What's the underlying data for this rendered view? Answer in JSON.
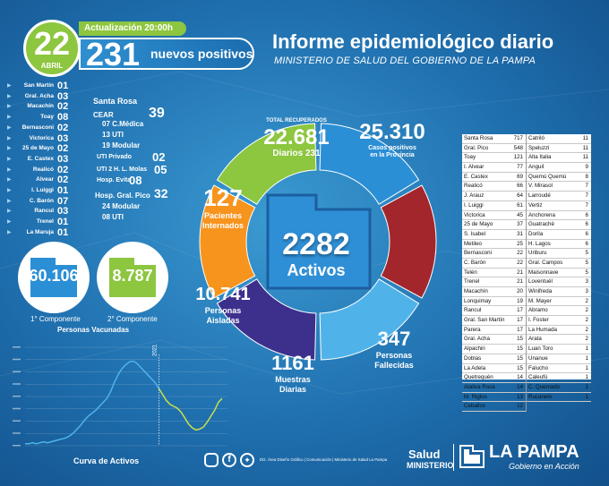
{
  "header": {
    "day": "22",
    "month": "ABRIL",
    "update_label": "Actualización 20:00h",
    "new_positives_value": "231",
    "new_positives_label": "nuevos positivos",
    "title": "Informe epidemiológico diario",
    "subtitle": "MINISTERIO DE SALUD DEL GOBIERNO DE LA PAMPA"
  },
  "localities": [
    {
      "name": "San Martín",
      "value": "01"
    },
    {
      "name": "Gral. Acha",
      "value": "03"
    },
    {
      "name": "Macachín",
      "value": "02"
    },
    {
      "name": "Toay",
      "value": "08"
    },
    {
      "name": "Bernasconi",
      "value": "02"
    },
    {
      "name": "Victorica",
      "value": "03"
    },
    {
      "name": "25 de Mayo",
      "value": "02"
    },
    {
      "name": "E. Castex",
      "value": "03"
    },
    {
      "name": "Realicó",
      "value": "02"
    },
    {
      "name": "Alvear",
      "value": "02"
    },
    {
      "name": "I. Luiggi",
      "value": "01"
    },
    {
      "name": "C. Barón",
      "value": "07"
    },
    {
      "name": "Rancul",
      "value": "03"
    },
    {
      "name": "Trenel",
      "value": "01"
    },
    {
      "name": "La Maruja",
      "value": "01"
    }
  ],
  "hospitals": {
    "santa_rosa": "Santa Rosa",
    "cear": "CEAR",
    "cmedica": "07 C.Médica",
    "cmedica_total": "39",
    "uti13": "13 UTI",
    "modular19": "19 Modular",
    "uti_privado": "UTI Privado",
    "uti_privado_val": "02",
    "molas": "UTI 2 H. L. Molas",
    "molas_val": "05",
    "evita": "Hosp. Evita",
    "evita_val": "08",
    "pico": "Hosp. Gral. Pico",
    "pico_val": "32",
    "modular24": "24 Modular",
    "uti08": "08 UTI"
  },
  "vaccines": {
    "first_value": "60.106",
    "first_label": "1° Componente",
    "second_value": "8.787",
    "second_label": "2° Componente",
    "caption": "Personas Vacunadas"
  },
  "donut": {
    "recovered_label": "TOTAL RECUPERADOS",
    "recovered_value": "22.681",
    "recovered_daily": "Diarios 231",
    "positives_value": "25.310",
    "positives_label1": "Casos positivos",
    "positives_label2": "en la Provincia",
    "hospitalized_value": "127",
    "hospitalized_label1": "Pacientes",
    "hospitalized_label2": "Internados",
    "isolated_value": "10.741",
    "isolated_label1": "Personas",
    "isolated_label2": "Aisladas",
    "samples_value": "1161",
    "samples_label1": "Muestras",
    "samples_label2": "Diarias",
    "deceased_value": "347",
    "deceased_label1": "Personas",
    "deceased_label2": "Fallecidas",
    "active_value": "2282",
    "active_label": "Activos",
    "colors": {
      "green": "#8dc63f",
      "blue": "#2b8fd6",
      "orange": "#f7941d",
      "purple": "#3d2f8c",
      "light": "#4fb3ea",
      "red": "#a3262c"
    }
  },
  "table": {
    "left": [
      {
        "n": "Santa Rosa",
        "v": "717"
      },
      {
        "n": "Gral. Pico",
        "v": "548"
      },
      {
        "n": "Toay",
        "v": "121"
      },
      {
        "n": "I. Alvear",
        "v": "77"
      },
      {
        "n": "E. Castex",
        "v": "69"
      },
      {
        "n": "Realicó",
        "v": "66"
      },
      {
        "n": "J. Arauz",
        "v": "64"
      },
      {
        "n": "I. Luiggi",
        "v": "61"
      },
      {
        "n": "Victorica",
        "v": "45"
      },
      {
        "n": "25 de Mayo",
        "v": "37"
      },
      {
        "n": "S. Isabel",
        "v": "31"
      },
      {
        "n": "Metileo",
        "v": "25"
      },
      {
        "n": "Bernasconi",
        "v": "22"
      },
      {
        "n": "C. Barón",
        "v": "22"
      },
      {
        "n": "Telén",
        "v": "21"
      },
      {
        "n": "Trenel",
        "v": "21"
      },
      {
        "n": "Macachín",
        "v": "20"
      },
      {
        "n": "Lonquimay",
        "v": "19"
      },
      {
        "n": "Rancul",
        "v": "17"
      },
      {
        "n": "Gral. San Martín",
        "v": "17"
      },
      {
        "n": "Parera",
        "v": "17"
      },
      {
        "n": "Gral. Acha",
        "v": "15"
      },
      {
        "n": "Alpachiri",
        "v": "15"
      },
      {
        "n": "Doblas",
        "v": "15"
      },
      {
        "n": "La Adela",
        "v": "15"
      },
      {
        "n": "Quetrequén",
        "v": "14"
      },
      {
        "n": "Ataliva Roca",
        "v": "14"
      },
      {
        "n": "M. Riglos",
        "v": "13"
      },
      {
        "n": "Ceballos",
        "v": "12"
      }
    ],
    "right": [
      {
        "n": "Catriló",
        "v": "11"
      },
      {
        "n": "Speluzzi",
        "v": "11"
      },
      {
        "n": "Alta Italia",
        "v": "11"
      },
      {
        "n": "Anguil",
        "v": "9"
      },
      {
        "n": "Quemú Quemú",
        "v": "8"
      },
      {
        "n": "V. Mirasol",
        "v": "7"
      },
      {
        "n": "Larroudé",
        "v": "7"
      },
      {
        "n": "Vertiz",
        "v": "7"
      },
      {
        "n": "Anchorena",
        "v": "6"
      },
      {
        "n": "Guatraché",
        "v": "6"
      },
      {
        "n": "Dorila",
        "v": "6"
      },
      {
        "n": "H. Lagos",
        "v": "6"
      },
      {
        "n": "Uriburu",
        "v": "5"
      },
      {
        "n": "Gral. Campos",
        "v": "5"
      },
      {
        "n": "Maisonnave",
        "v": "5"
      },
      {
        "n": "Loventuél",
        "v": "3"
      },
      {
        "n": "Winifreda",
        "v": "3"
      },
      {
        "n": "M. Mayer",
        "v": "2"
      },
      {
        "n": "Abramo",
        "v": "2"
      },
      {
        "n": "I. Foster",
        "v": "2"
      },
      {
        "n": "La Humada",
        "v": "2"
      },
      {
        "n": "Arata",
        "v": "2"
      },
      {
        "n": "Luan Toro",
        "v": "1"
      },
      {
        "n": "Unanue",
        "v": "1"
      },
      {
        "n": "Falucho",
        "v": "1"
      },
      {
        "n": "Caleufú",
        "v": "1"
      },
      {
        "n": "C. Quemado",
        "v": "1"
      },
      {
        "n": "Rucanelo",
        "v": "1"
      }
    ]
  },
  "chart": {
    "caption": "Curva de Activos",
    "year_label": "2021",
    "series_blue": [
      2,
      2,
      3,
      2,
      3,
      4,
      3,
      4,
      5,
      6,
      7,
      8,
      10,
      13,
      17,
      21,
      26,
      30,
      33,
      36,
      40,
      44,
      48,
      55,
      64,
      72,
      78,
      82,
      85,
      86,
      84,
      80,
      76,
      72,
      68,
      64,
      58
    ],
    "series_green": [
      58,
      52,
      46,
      42,
      40,
      38,
      34,
      28,
      22,
      18,
      16,
      17,
      19,
      24,
      30,
      36,
      44,
      48
    ],
    "colors": {
      "blue": "#4fb3ea",
      "green": "#c8e04a"
    }
  },
  "footer": {
    "credit": "DG. Área Diseño Gráfico | Comunicación | Ministerio de Salud La Pampa",
    "salud": "Salud",
    "ministerio": "MINISTERIO",
    "la_pampa": "LA PAMPA",
    "gobierno": "Gobierno en Acción"
  }
}
